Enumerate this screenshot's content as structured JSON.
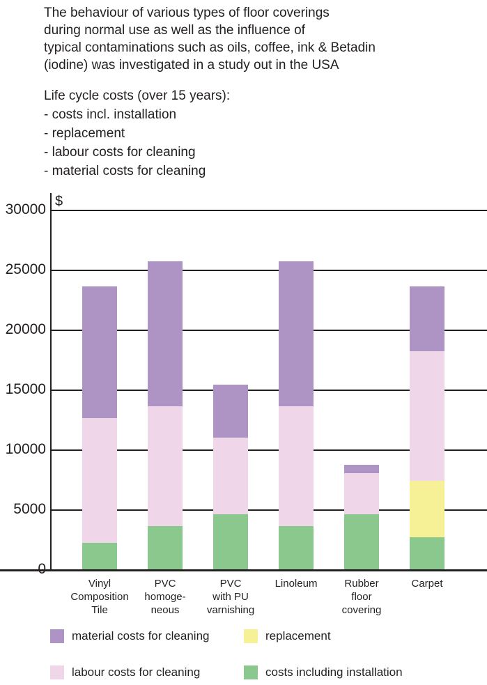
{
  "intro": {
    "paragraph1_lines": [
      "The behaviour of various types of floor coverings",
      "during normal use as well as the influence of",
      "typical contaminations such as oils, coffee, ink & Betadin",
      "(iodine) was investigated in a study out in the USA"
    ],
    "paragraph2_lines": [
      "Life cycle costs (over 15 years):",
      "- costs incl. installation",
      "- replacement",
      "- labour costs for cleaning",
      "- material costs for cleaning"
    ]
  },
  "chart_data": {
    "type": "bar",
    "stacked": true,
    "title": "",
    "ylabel": "$",
    "xlabel": "",
    "ylim": [
      0,
      30000
    ],
    "ytick_interval": 5000,
    "ytick_labels": [
      "30000",
      "25000",
      "20000",
      "15000",
      "10000",
      "5000",
      "0"
    ],
    "grid": true,
    "legend_position": "bottom",
    "categories": [
      "Vinyl Composition Tile",
      "PVC homogeneous",
      "PVC with PU varnishing",
      "Linoleum",
      "Rubber floor covering",
      "Carpet"
    ],
    "category_label_lines": [
      [
        "Vinyl",
        "Composition",
        "Tile"
      ],
      [
        "PVC",
        "homoge-",
        "neous"
      ],
      [
        "PVC",
        "with PU",
        "varnishing"
      ],
      [
        "Linoleum"
      ],
      [
        "Rubber",
        "floor",
        "covering"
      ],
      [
        "Carpet"
      ]
    ],
    "series": [
      {
        "name": "costs including installation",
        "color": "#8bc88e",
        "values": [
          2200,
          3600,
          4600,
          3600,
          4600,
          2700
        ]
      },
      {
        "name": "replacement",
        "color": "#f6f096",
        "values": [
          0,
          0,
          0,
          0,
          0,
          4700
        ]
      },
      {
        "name": "labour costs for cleaning",
        "color": "#efd7e9",
        "values": [
          10400,
          10000,
          6400,
          10000,
          3400,
          10800
        ]
      },
      {
        "name": "material costs for cleaning",
        "color": "#ae93c5",
        "values": [
          11000,
          12100,
          4400,
          12100,
          700,
          5400
        ]
      }
    ],
    "totals": [
      23600,
      25700,
      15400,
      25700,
      8700,
      23600
    ],
    "axis_color": "#231f20"
  },
  "legend": {
    "items": [
      {
        "label": "material costs for cleaning",
        "color": "#ae93c5"
      },
      {
        "label": "replacement",
        "color": "#f6f096"
      },
      {
        "label": "labour costs for cleaning",
        "color": "#efd7e9"
      },
      {
        "label": "costs including installation",
        "color": "#8bc88e"
      }
    ]
  }
}
